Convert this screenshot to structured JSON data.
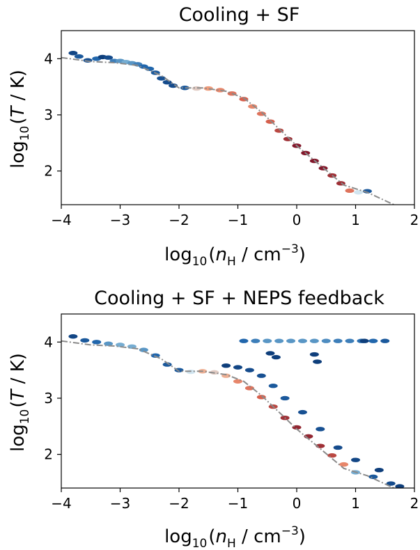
{
  "chart_data": [
    {
      "type": "heatmap",
      "panel": "top",
      "title": "Cooling + SF",
      "xlabel": {
        "prefix": "log",
        "sub": "10",
        "open": "(",
        "var": "n",
        "varsub": "H",
        "unit": " / cm",
        "sup": "−3",
        "close": ")"
      },
      "ylabel": {
        "prefix": "log",
        "sub": "10",
        "open": "(",
        "var": "T",
        "unit": " / K",
        "close": ")"
      },
      "xlim": [
        -4,
        2
      ],
      "ylim": [
        1.4,
        4.5
      ],
      "xticks": [
        -4,
        -3,
        -2,
        -1,
        0,
        1,
        2
      ],
      "xtick_labels": [
        "−4",
        "−3",
        "−2",
        "−1",
        "0",
        "1",
        "2"
      ],
      "yticks": [
        2,
        3,
        4
      ],
      "ytick_labels": [
        "2",
        "3",
        "4"
      ],
      "grid": false,
      "colormap": "RdBu (dark red = high density, dark blue = low density)",
      "equilibrium_curve": {
        "style": "dash-dot",
        "color": "#8a8a8a",
        "x": [
          -4.0,
          -3.5,
          -3.1,
          -2.7,
          -2.3,
          -2.0,
          -1.6,
          -1.2,
          -0.9,
          -0.6,
          -0.3,
          0.0,
          0.4,
          0.8,
          1.2,
          1.65
        ],
        "y": [
          4.02,
          3.95,
          3.93,
          3.88,
          3.7,
          3.48,
          3.48,
          3.42,
          3.3,
          3.05,
          2.75,
          2.45,
          2.1,
          1.75,
          1.62,
          1.4
        ]
      },
      "points": [
        {
          "x": -3.8,
          "y": 4.1,
          "d": 0.08
        },
        {
          "x": -3.7,
          "y": 4.04,
          "d": 0.15
        },
        {
          "x": -3.55,
          "y": 3.97,
          "d": 0.12
        },
        {
          "x": -3.4,
          "y": 4.0,
          "d": 0.2
        },
        {
          "x": -3.3,
          "y": 4.03,
          "d": 0.05
        },
        {
          "x": -3.2,
          "y": 4.02,
          "d": 0.1
        },
        {
          "x": -3.1,
          "y": 3.96,
          "d": 0.25
        },
        {
          "x": -3.0,
          "y": 3.96,
          "d": 0.3
        },
        {
          "x": -2.9,
          "y": 3.94,
          "d": 0.35
        },
        {
          "x": -2.8,
          "y": 3.92,
          "d": 0.3
        },
        {
          "x": -2.7,
          "y": 3.9,
          "d": 0.25
        },
        {
          "x": -2.6,
          "y": 3.86,
          "d": 0.2
        },
        {
          "x": -2.5,
          "y": 3.82,
          "d": 0.2
        },
        {
          "x": -2.4,
          "y": 3.75,
          "d": 0.15
        },
        {
          "x": -2.3,
          "y": 3.65,
          "d": 0.12
        },
        {
          "x": -2.2,
          "y": 3.58,
          "d": 0.1
        },
        {
          "x": -2.1,
          "y": 3.52,
          "d": 0.1
        },
        {
          "x": -1.9,
          "y": 3.48,
          "d": 0.15
        },
        {
          "x": -1.7,
          "y": 3.47,
          "d": 0.55
        },
        {
          "x": -1.5,
          "y": 3.47,
          "d": 0.65
        },
        {
          "x": -1.3,
          "y": 3.44,
          "d": 0.7
        },
        {
          "x": -1.1,
          "y": 3.38,
          "d": 0.75
        },
        {
          "x": -0.9,
          "y": 3.28,
          "d": 0.8
        },
        {
          "x": -0.75,
          "y": 3.15,
          "d": 0.7
        },
        {
          "x": -0.6,
          "y": 3.02,
          "d": 0.75
        },
        {
          "x": -0.45,
          "y": 2.88,
          "d": 0.8
        },
        {
          "x": -0.3,
          "y": 2.72,
          "d": 0.85
        },
        {
          "x": -0.15,
          "y": 2.57,
          "d": 0.9
        },
        {
          "x": 0.0,
          "y": 2.45,
          "d": 0.95
        },
        {
          "x": 0.15,
          "y": 2.32,
          "d": 0.95
        },
        {
          "x": 0.3,
          "y": 2.18,
          "d": 0.95
        },
        {
          "x": 0.45,
          "y": 2.05,
          "d": 0.95
        },
        {
          "x": 0.6,
          "y": 1.92,
          "d": 0.9
        },
        {
          "x": 0.75,
          "y": 1.78,
          "d": 0.9
        },
        {
          "x": 0.9,
          "y": 1.65,
          "d": 0.75
        },
        {
          "x": 1.05,
          "y": 1.62,
          "d": 0.5
        },
        {
          "x": 1.2,
          "y": 1.64,
          "d": 0.15
        }
      ]
    },
    {
      "type": "heatmap",
      "panel": "bottom",
      "title": "Cooling + SF + NEPS feedback",
      "xlabel": {
        "prefix": "log",
        "sub": "10",
        "open": "(",
        "var": "n",
        "varsub": "H",
        "unit": " / cm",
        "sup": "−3",
        "close": ")"
      },
      "ylabel": {
        "prefix": "log",
        "sub": "10",
        "open": "(",
        "var": "T",
        "unit": " / K",
        "close": ")"
      },
      "xlim": [
        -4,
        2
      ],
      "ylim": [
        1.4,
        4.5
      ],
      "xticks": [
        -4,
        -3,
        -2,
        -1,
        0,
        1,
        2
      ],
      "xtick_labels": [
        "−4",
        "−3",
        "−2",
        "−1",
        "0",
        "1",
        "2"
      ],
      "yticks": [
        2,
        3,
        4
      ],
      "ytick_labels": [
        "2",
        "3",
        "4"
      ],
      "grid": false,
      "colormap": "RdBu (dark red = high density, dark blue = low density)",
      "equilibrium_curve": {
        "style": "dash-dot",
        "color": "#8a8a8a",
        "x": [
          -4.0,
          -3.5,
          -3.1,
          -2.7,
          -2.3,
          -2.0,
          -1.6,
          -1.2,
          -0.9,
          -0.6,
          -0.3,
          0.0,
          0.4,
          0.8,
          1.2,
          1.65
        ],
        "y": [
          4.02,
          3.95,
          3.93,
          3.88,
          3.7,
          3.48,
          3.48,
          3.42,
          3.3,
          3.05,
          2.75,
          2.45,
          2.1,
          1.75,
          1.62,
          1.4
        ]
      },
      "points": [
        {
          "x": -3.8,
          "y": 4.1,
          "d": 0.08
        },
        {
          "x": -3.6,
          "y": 4.03,
          "d": 0.15
        },
        {
          "x": -3.4,
          "y": 4.0,
          "d": 0.2
        },
        {
          "x": -3.2,
          "y": 3.97,
          "d": 0.3
        },
        {
          "x": -3.0,
          "y": 3.95,
          "d": 0.35
        },
        {
          "x": -2.8,
          "y": 3.92,
          "d": 0.35
        },
        {
          "x": -2.6,
          "y": 3.86,
          "d": 0.3
        },
        {
          "x": -2.4,
          "y": 3.76,
          "d": 0.2
        },
        {
          "x": -2.2,
          "y": 3.6,
          "d": 0.15
        },
        {
          "x": -2.0,
          "y": 3.5,
          "d": 0.15
        },
        {
          "x": -1.8,
          "y": 3.47,
          "d": 0.5
        },
        {
          "x": -1.6,
          "y": 3.48,
          "d": 0.6
        },
        {
          "x": -1.4,
          "y": 3.46,
          "d": 0.55
        },
        {
          "x": -1.2,
          "y": 3.4,
          "d": 0.6
        },
        {
          "x": -1.0,
          "y": 3.3,
          "d": 0.7
        },
        {
          "x": -0.8,
          "y": 3.18,
          "d": 0.75
        },
        {
          "x": -0.6,
          "y": 3.02,
          "d": 0.8
        },
        {
          "x": -0.4,
          "y": 2.85,
          "d": 0.85
        },
        {
          "x": -0.2,
          "y": 2.65,
          "d": 0.9
        },
        {
          "x": 0.0,
          "y": 2.48,
          "d": 0.92
        },
        {
          "x": 0.2,
          "y": 2.32,
          "d": 0.92
        },
        {
          "x": 0.4,
          "y": 2.15,
          "d": 0.9
        },
        {
          "x": 0.6,
          "y": 1.98,
          "d": 0.85
        },
        {
          "x": 0.8,
          "y": 1.82,
          "d": 0.7
        },
        {
          "x": 1.0,
          "y": 1.68,
          "d": 0.35
        },
        {
          "x": 1.3,
          "y": 1.6,
          "d": 0.15
        },
        {
          "x": 1.6,
          "y": 1.48,
          "d": 0.1
        },
        {
          "x": 1.75,
          "y": 1.43,
          "d": 0.05
        },
        {
          "x": -1.2,
          "y": 3.58,
          "d": 0.05
        },
        {
          "x": -1.0,
          "y": 3.55,
          "d": 0.08
        },
        {
          "x": -0.8,
          "y": 3.5,
          "d": 0.1
        },
        {
          "x": -0.6,
          "y": 3.4,
          "d": 0.12
        },
        {
          "x": -0.4,
          "y": 3.22,
          "d": 0.15
        },
        {
          "x": -0.2,
          "y": 3.0,
          "d": 0.15
        },
        {
          "x": 0.1,
          "y": 2.75,
          "d": 0.12
        },
        {
          "x": 0.4,
          "y": 2.45,
          "d": 0.12
        },
        {
          "x": 0.7,
          "y": 2.12,
          "d": 0.1
        },
        {
          "x": 1.0,
          "y": 1.9,
          "d": 0.08
        },
        {
          "x": 1.4,
          "y": 1.72,
          "d": 0.05
        },
        {
          "x": -0.9,
          "y": 4.02,
          "d": 0.2
        },
        {
          "x": -0.7,
          "y": 4.02,
          "d": 0.25
        },
        {
          "x": -0.5,
          "y": 4.02,
          "d": 0.3
        },
        {
          "x": -0.3,
          "y": 4.02,
          "d": 0.3
        },
        {
          "x": -0.1,
          "y": 4.02,
          "d": 0.3
        },
        {
          "x": 0.1,
          "y": 4.02,
          "d": 0.3
        },
        {
          "x": 0.3,
          "y": 4.02,
          "d": 0.3
        },
        {
          "x": 0.5,
          "y": 4.02,
          "d": 0.28
        },
        {
          "x": 0.7,
          "y": 4.02,
          "d": 0.25
        },
        {
          "x": 0.9,
          "y": 4.02,
          "d": 0.25
        },
        {
          "x": 1.1,
          "y": 4.02,
          "d": 0.22
        },
        {
          "x": 1.3,
          "y": 4.02,
          "d": 0.2
        },
        {
          "x": 1.5,
          "y": 4.02,
          "d": 0.15
        },
        {
          "x": 1.15,
          "y": 4.02,
          "d": 0.05
        },
        {
          "x": -0.45,
          "y": 3.8,
          "d": 0.05
        },
        {
          "x": -0.35,
          "y": 3.73,
          "d": 0.05
        },
        {
          "x": 0.3,
          "y": 3.78,
          "d": 0.05
        },
        {
          "x": 0.35,
          "y": 3.65,
          "d": 0.05
        }
      ]
    }
  ]
}
